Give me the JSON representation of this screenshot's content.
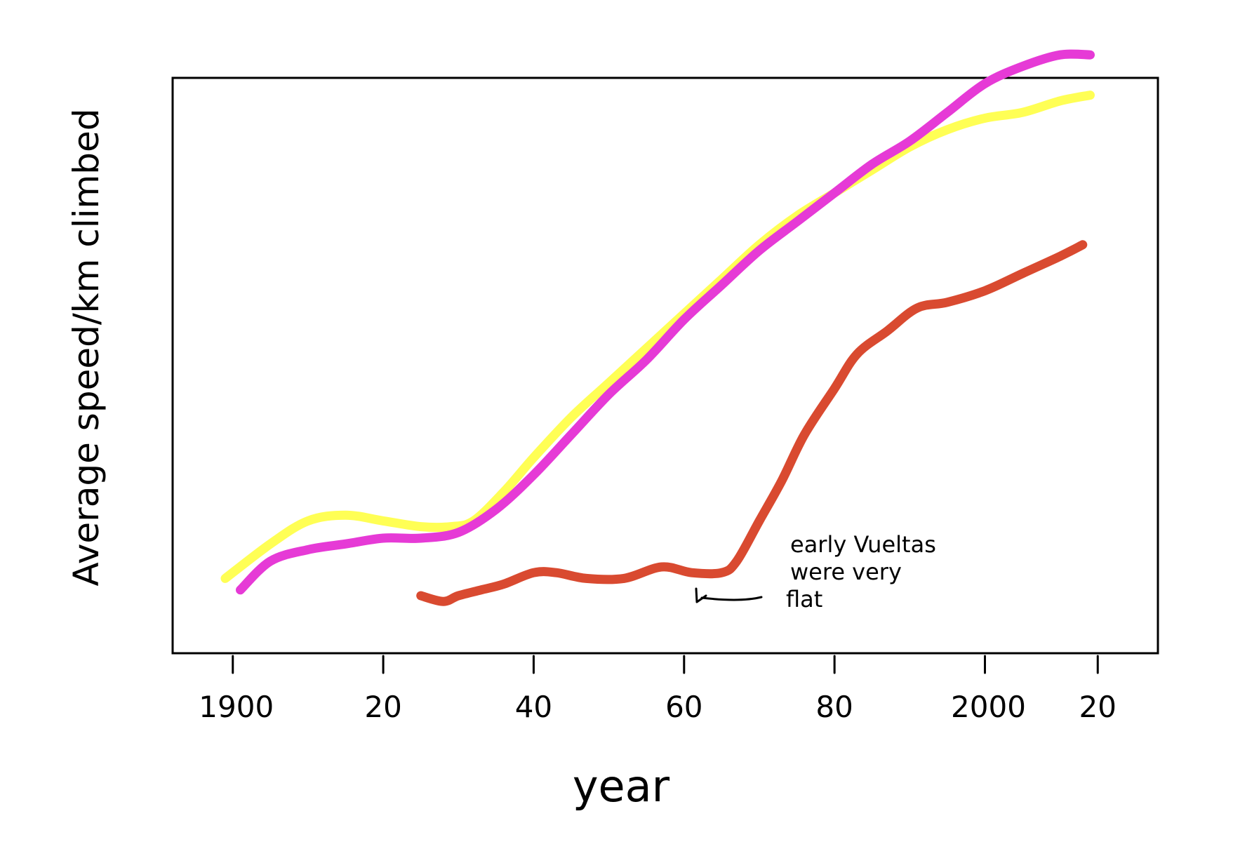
{
  "chart_data": {
    "type": "line",
    "title": "",
    "xlabel": "year",
    "ylabel": "Average speed/km climbed",
    "xlim": [
      1892,
      2023
    ],
    "ylim": [
      0,
      10
    ],
    "x_ticks": [
      {
        "value": 1900,
        "label": "1900"
      },
      {
        "value": 1920,
        "label": "20"
      },
      {
        "value": 1940,
        "label": "40"
      },
      {
        "value": 1960,
        "label": "60"
      },
      {
        "value": 1980,
        "label": "80"
      },
      {
        "value": 2000,
        "label": "2000"
      },
      {
        "value": 2015,
        "label": "20"
      }
    ],
    "y_ticks": [],
    "grid": false,
    "legend": "none",
    "series": [
      {
        "color": "#ffff55",
        "x": [
          1899,
          1905,
          1910,
          1915,
          1920,
          1925,
          1929,
          1932,
          1936,
          1940,
          1945,
          1950,
          1955,
          1960,
          1965,
          1970,
          1975,
          1980,
          1985,
          1990,
          1995,
          2000,
          2005,
          2010,
          2014
        ],
        "y": [
          1.3,
          1.9,
          2.3,
          2.4,
          2.3,
          2.2,
          2.2,
          2.3,
          2.8,
          3.4,
          4.1,
          4.7,
          5.3,
          5.9,
          6.5,
          7.1,
          7.6,
          8.0,
          8.4,
          8.8,
          9.1,
          9.3,
          9.4,
          9.6,
          9.7
        ]
      },
      {
        "color": "#e63ad6",
        "x": [
          1901,
          1905,
          1910,
          1915,
          1920,
          1925,
          1930,
          1935,
          1940,
          1945,
          1950,
          1955,
          1960,
          1965,
          1970,
          1975,
          1980,
          1985,
          1990,
          1995,
          2000,
          2005,
          2010,
          2014
        ],
        "y": [
          1.1,
          1.6,
          1.8,
          1.9,
          2.0,
          2.0,
          2.1,
          2.5,
          3.1,
          3.8,
          4.5,
          5.1,
          5.8,
          6.4,
          7.0,
          7.5,
          8.0,
          8.5,
          8.9,
          9.4,
          9.9,
          10.2,
          10.4,
          10.4
        ]
      },
      {
        "color": "#d94a30",
        "x": [
          1925,
          1928,
          1930,
          1933,
          1936,
          1940,
          1943,
          1947,
          1952,
          1957,
          1961,
          1965,
          1967,
          1970,
          1973,
          1976,
          1980,
          1983,
          1987,
          1991,
          1995,
          2000,
          2005,
          2010,
          2013
        ],
        "y": [
          1.0,
          0.9,
          1.0,
          1.1,
          1.2,
          1.4,
          1.4,
          1.3,
          1.3,
          1.5,
          1.4,
          1.4,
          1.6,
          2.3,
          3.0,
          3.8,
          4.6,
          5.2,
          5.6,
          6.0,
          6.1,
          6.3,
          6.6,
          6.9,
          7.1
        ]
      }
    ],
    "annotations": [
      {
        "text_lines": [
          "early Vueltas",
          "were very",
          "flat"
        ],
        "x": 1966,
        "y": 1.3
      }
    ]
  }
}
